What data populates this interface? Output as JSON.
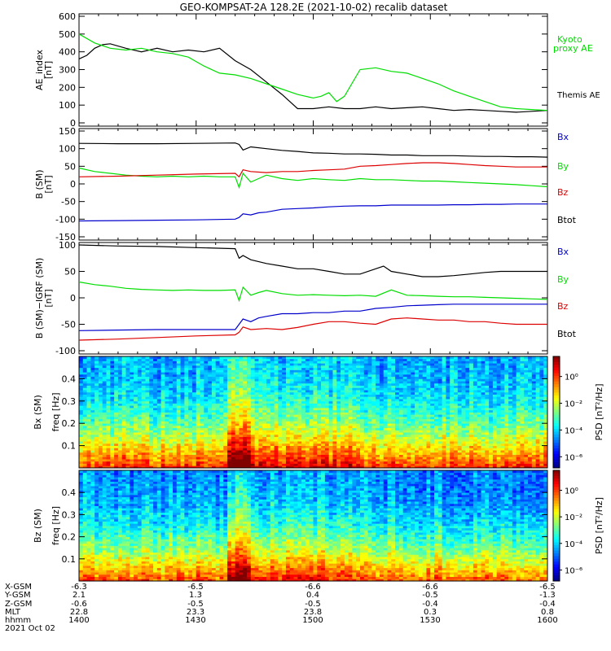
{
  "title": "GEO-KOMPSAT-2A 128.2E (2021-10-02) recalib dataset",
  "colors": {
    "black": "#000000",
    "green": "#00dd00",
    "red": "#dd0000",
    "blue": "#0000cc"
  },
  "chart_data": [
    {
      "type": "line",
      "ylabel": "AE_index [nT]",
      "ylim": [
        0,
        600
      ],
      "yticks": [
        0,
        100,
        200,
        300,
        400,
        500,
        600
      ],
      "xlim": [
        0,
        120
      ],
      "series": [
        {
          "name": "Themis AE",
          "color": "black",
          "x": [
            0,
            2,
            4,
            6,
            8,
            12,
            16,
            20,
            24,
            28,
            32,
            36,
            40,
            44,
            48,
            52,
            56,
            60,
            64,
            68,
            72,
            76,
            80,
            84,
            88,
            92,
            96,
            100,
            104,
            108,
            112,
            116,
            120
          ],
          "y": [
            360,
            380,
            420,
            440,
            445,
            420,
            400,
            420,
            400,
            410,
            400,
            420,
            350,
            300,
            230,
            160,
            80,
            80,
            90,
            80,
            80,
            90,
            80,
            85,
            90,
            80,
            70,
            75,
            70,
            65,
            60,
            65,
            70
          ]
        },
        {
          "name": "Kyoto proxy AE",
          "color": "green",
          "x": [
            0,
            4,
            8,
            12,
            16,
            20,
            24,
            28,
            32,
            36,
            40,
            44,
            48,
            52,
            56,
            60,
            62,
            64,
            66,
            68,
            72,
            76,
            80,
            84,
            88,
            92,
            96,
            100,
            104,
            108,
            112,
            116,
            120
          ],
          "y": [
            500,
            450,
            420,
            410,
            420,
            400,
            390,
            370,
            320,
            280,
            270,
            250,
            220,
            190,
            160,
            140,
            150,
            170,
            120,
            150,
            300,
            310,
            290,
            280,
            250,
            220,
            180,
            150,
            120,
            90,
            80,
            75,
            70
          ]
        }
      ]
    },
    {
      "type": "line",
      "ylabel": "B (SM) [nT]",
      "ylim": [
        -150,
        150
      ],
      "yticks": [
        -150,
        -100,
        -50,
        0,
        50,
        100,
        150
      ],
      "xlim": [
        0,
        120
      ],
      "series": [
        {
          "name": "Bx",
          "color": "blue",
          "x": [
            0,
            10,
            20,
            30,
            40,
            41,
            42,
            44,
            46,
            48,
            52,
            56,
            60,
            64,
            68,
            72,
            76,
            80,
            84,
            88,
            92,
            96,
            100,
            104,
            108,
            112,
            116,
            120
          ],
          "y": [
            -105,
            -104,
            -103,
            -102,
            -100,
            -95,
            -85,
            -88,
            -82,
            -80,
            -72,
            -70,
            -68,
            -65,
            -63,
            -62,
            -62,
            -60,
            -60,
            -60,
            -60,
            -59,
            -59,
            -58,
            -58,
            -57,
            -57,
            -57
          ]
        },
        {
          "name": "By",
          "color": "green",
          "x": [
            0,
            4,
            8,
            12,
            16,
            20,
            24,
            28,
            32,
            36,
            40,
            41,
            42,
            44,
            46,
            48,
            52,
            56,
            60,
            64,
            68,
            72,
            76,
            80,
            84,
            88,
            92,
            96,
            100,
            104,
            108,
            112,
            116,
            120
          ],
          "y": [
            45,
            35,
            30,
            25,
            22,
            20,
            22,
            20,
            22,
            20,
            20,
            -10,
            30,
            5,
            15,
            25,
            15,
            10,
            15,
            12,
            10,
            15,
            12,
            12,
            10,
            8,
            8,
            6,
            4,
            2,
            0,
            -2,
            -5,
            -8
          ]
        },
        {
          "name": "Bz",
          "color": "red",
          "x": [
            0,
            10,
            20,
            30,
            40,
            41,
            42,
            44,
            48,
            52,
            56,
            60,
            64,
            68,
            72,
            76,
            80,
            84,
            88,
            92,
            96,
            100,
            104,
            108,
            112,
            116,
            120
          ],
          "y": [
            20,
            22,
            25,
            28,
            30,
            20,
            40,
            35,
            32,
            35,
            35,
            38,
            40,
            42,
            50,
            52,
            55,
            58,
            60,
            60,
            58,
            55,
            52,
            50,
            48,
            48,
            48
          ]
        },
        {
          "name": "Btot",
          "color": "black",
          "x": [
            0,
            10,
            20,
            30,
            40,
            41,
            42,
            44,
            48,
            52,
            56,
            60,
            64,
            68,
            72,
            76,
            80,
            84,
            88,
            92,
            96,
            100,
            104,
            108,
            112,
            116,
            120
          ],
          "y": [
            115,
            114,
            114,
            115,
            116,
            112,
            96,
            105,
            100,
            95,
            92,
            88,
            87,
            85,
            85,
            84,
            82,
            82,
            80,
            80,
            80,
            79,
            78,
            78,
            77,
            77,
            76
          ]
        }
      ]
    },
    {
      "type": "line",
      "ylabel": "B (SM)−IGRF (SM) [nT]",
      "ylim": [
        -100,
        100
      ],
      "yticks": [
        -100,
        -50,
        0,
        50,
        100
      ],
      "xlim": [
        0,
        120
      ],
      "series": [
        {
          "name": "Bx",
          "color": "blue",
          "x": [
            0,
            10,
            20,
            30,
            40,
            41,
            42,
            44,
            46,
            48,
            52,
            56,
            60,
            64,
            68,
            72,
            76,
            80,
            84,
            88,
            92,
            96,
            100,
            104,
            108,
            112,
            116,
            120
          ],
          "y": [
            -62,
            -61,
            -60,
            -60,
            -60,
            -50,
            -40,
            -45,
            -38,
            -35,
            -30,
            -30,
            -28,
            -28,
            -25,
            -25,
            -20,
            -18,
            -15,
            -14,
            -13,
            -12,
            -12,
            -12,
            -12,
            -12,
            -12,
            -12
          ]
        },
        {
          "name": "By",
          "color": "green",
          "x": [
            0,
            4,
            8,
            12,
            16,
            20,
            24,
            28,
            32,
            36,
            40,
            41,
            42,
            44,
            46,
            48,
            52,
            56,
            60,
            64,
            68,
            72,
            76,
            80,
            84,
            88,
            92,
            96,
            100,
            104,
            108,
            112,
            116,
            120
          ],
          "y": [
            30,
            25,
            22,
            18,
            16,
            15,
            14,
            15,
            14,
            14,
            15,
            -5,
            20,
            5,
            10,
            14,
            8,
            5,
            6,
            5,
            4,
            5,
            3,
            15,
            5,
            4,
            3,
            2,
            2,
            1,
            0,
            -1,
            -2,
            -3
          ]
        },
        {
          "name": "Bz",
          "color": "red",
          "x": [
            0,
            10,
            20,
            30,
            40,
            41,
            42,
            44,
            48,
            52,
            56,
            60,
            64,
            68,
            72,
            76,
            80,
            84,
            88,
            92,
            96,
            100,
            104,
            108,
            112,
            116,
            120
          ],
          "y": [
            -80,
            -78,
            -75,
            -72,
            -70,
            -65,
            -55,
            -60,
            -58,
            -60,
            -56,
            -50,
            -45,
            -45,
            -48,
            -50,
            -40,
            -38,
            -40,
            -42,
            -42,
            -45,
            -45,
            -48,
            -50,
            -50,
            -50
          ]
        },
        {
          "name": "Btot",
          "color": "black",
          "x": [
            0,
            10,
            20,
            30,
            40,
            41,
            42,
            44,
            48,
            52,
            56,
            60,
            64,
            68,
            72,
            76,
            78,
            80,
            84,
            88,
            92,
            96,
            100,
            104,
            108,
            112,
            116,
            120
          ],
          "y": [
            100,
            98,
            97,
            95,
            93,
            75,
            80,
            72,
            65,
            60,
            55,
            55,
            50,
            45,
            45,
            55,
            60,
            50,
            45,
            40,
            40,
            42,
            45,
            48,
            50,
            50,
            50,
            50
          ]
        }
      ]
    },
    {
      "type": "heatmap",
      "ylabel": "Bx (SM) freq [Hz]",
      "ylim": [
        0,
        0.5
      ],
      "yticks": [
        0.1,
        0.2,
        0.3,
        0.4
      ],
      "colorbar": {
        "label": "PSD [nT²/Hz]",
        "ticks": [
          "10⁰",
          "10⁻²",
          "10⁻⁴",
          "10⁻⁶"
        ]
      }
    },
    {
      "type": "heatmap",
      "ylabel": "Bz (SM) freq [Hz]",
      "ylim": [
        0,
        0.5
      ],
      "yticks": [
        0.1,
        0.2,
        0.3,
        0.4
      ],
      "colorbar": {
        "label": "PSD [nT²/Hz]",
        "ticks": [
          "10⁰",
          "10⁻²",
          "10⁻⁴",
          "10⁻⁶"
        ]
      }
    }
  ],
  "axis_table": {
    "row_labels": [
      "X-GSM",
      "Y-GSM",
      "Z-GSM",
      "MLT",
      "hhmm",
      "2021 Oct 02"
    ],
    "columns": [
      {
        "values": [
          "-6.3",
          "2.1",
          "-0.6",
          "22.8",
          "1400"
        ]
      },
      {
        "values": [
          "-6.5",
          "1.3",
          "-0.5",
          "23.3",
          "1430"
        ]
      },
      {
        "values": [
          "-6.6",
          "0.4",
          "-0.5",
          "23.8",
          "1500"
        ]
      },
      {
        "values": [
          "-6.6",
          "-0.5",
          "-0.4",
          "0.3",
          "1530"
        ]
      },
      {
        "values": [
          "-6.5",
          "-1.3",
          "-0.4",
          "0.8",
          "1600"
        ]
      }
    ]
  },
  "legend_labels": {
    "p0": [
      "Kyoto proxy AE",
      "Themis AE"
    ],
    "p1": [
      "Bx",
      "By",
      "Bz",
      "Btot"
    ],
    "p2": [
      "Bx",
      "By",
      "Bz",
      "Btot"
    ]
  }
}
